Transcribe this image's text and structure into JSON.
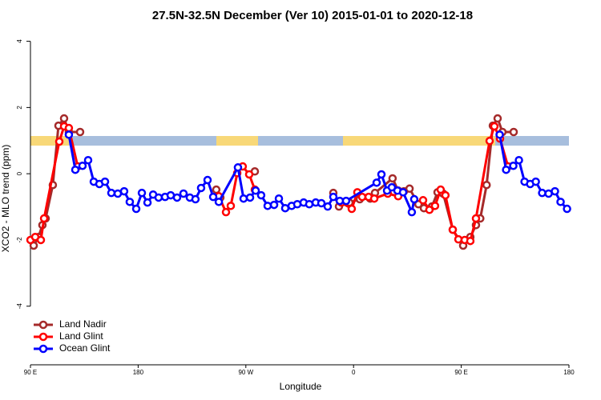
{
  "chart_data": {
    "type": "line",
    "title": "27.5N-32.5N December (Ver 10)   2015-01-01 to 2020-12-18",
    "x_label": "Longitude",
    "y_label": "XCO2 - MLO trend (ppm)",
    "xlim": [
      90,
      540
    ],
    "ylim": [
      -5.77,
      4.28
    ],
    "xticks": [
      {
        "value": 90,
        "label": "90 E"
      },
      180,
      {
        "value": 270,
        "label": "90 W"
      },
      {
        "value": 360,
        "label": "0"
      },
      {
        "value": 450,
        "label": "90 E"
      },
      {
        "value": 540,
        "label": "180"
      }
    ],
    "yticks": [
      -4,
      -2,
      0,
      2,
      4
    ],
    "legend": "bottom-left",
    "series": [
      {
        "name": "Land Nadir",
        "color": "#a52a2a",
        "x": [
          92.7,
          96.7,
          100,
          102.7,
          108.7,
          113.4,
          118.1,
          122.1,
          131.5,
          null,
          245.3,
          248.7,
          null,
          277.5,
          null,
          343.1,
          347.8,
          356.5,
          365.2,
          373.9,
          377.9,
          392.6,
          397.3,
          402.1,
          406.8,
          414.2,
          418.8,
          425.5,
          430.2,
          434.9,
          442.9,
          451.6,
          457.6,
          462.3,
          465.9,
          471.2,
          476.4,
          480.4,
          484.4,
          493.8
        ],
        "values": [
          -2.17,
          -1.91,
          -1.55,
          -1.35,
          -0.34,
          1.45,
          1.67,
          1.26,
          1.26,
          null,
          -0.48,
          -0.72,
          null,
          0.07,
          null,
          -0.58,
          -0.99,
          -0.87,
          -0.77,
          -0.75,
          -0.58,
          -0.14,
          -0.51,
          -0.53,
          -0.45,
          -0.92,
          -1.04,
          -0.99,
          -0.56,
          -0.6,
          -1.69,
          -2.17,
          -1.91,
          -1.55,
          -1.35,
          -0.34,
          1.45,
          1.67,
          1.26,
          1.26
        ]
      },
      {
        "name": "Land Glint",
        "color": "#ff0000",
        "x": [
          90,
          94,
          98.7,
          101.4,
          114.1,
          118.1,
          122.1,
          129.5,
          null,
          247.4,
          253.4,
          257.4,
          262.8,
          267.4,
          272.8,
          277.5,
          null,
          349.8,
          358.5,
          363.2,
          367.2,
          372.6,
          377.3,
          388.6,
          397.3,
          null,
          418.1,
          423.4,
          428.1,
          432.8,
          436.8,
          442.9,
          447.6,
          452.9,
          457.6,
          462.3,
          473.7,
          477.7,
          482.4,
          489.1
        ],
        "values": [
          -2.0,
          -1.91,
          -2.0,
          -1.35,
          0.97,
          1.43,
          1.38,
          0.22,
          null,
          -0.68,
          -1.16,
          -0.97,
          0.02,
          0.22,
          -0.02,
          -0.48,
          null,
          -0.87,
          -1.06,
          -0.56,
          -0.7,
          -0.7,
          -0.75,
          -0.6,
          -0.68,
          null,
          -0.8,
          -1.09,
          -0.97,
          -0.48,
          -0.65,
          -1.69,
          -1.98,
          -2.0,
          -2.03,
          -1.35,
          0.99,
          1.43,
          1.06,
          0.22
        ]
      },
      {
        "name": "Ocean Glint",
        "color": "#0000ff",
        "x": [
          122.1,
          127.5,
          133.5,
          138.2,
          142.9,
          147.6,
          152.3,
          157.6,
          163.0,
          168.3,
          173.0,
          178.4,
          183.1,
          187.8,
          192.5,
          197.1,
          202.5,
          207.2,
          212.5,
          217.9,
          223.2,
          227.9,
          232.6,
          238.0,
          242.7,
          247.4,
          263.4,
          268.1,
          273.5,
          278.2,
          282.8,
          288.2,
          293.6,
          297.6,
          302.9,
          308.3,
          313.0,
          318.3,
          323.0,
          328.4,
          333.1,
          338.4,
          343.1,
          348.5,
          353.8,
          379.3,
          383.3,
          388.0,
          392.0,
          396.7,
          401.4,
          408.7,
          410.7,
          null,
          482.1,
          487.5,
          493.5,
          498.2,
          502.9,
          507.6,
          512.3,
          517.6,
          523.0,
          528.3,
          533.0,
          538.4
        ],
        "values": [
          1.18,
          0.12,
          0.24,
          0.41,
          -0.24,
          -0.31,
          -0.24,
          -0.58,
          -0.6,
          -0.53,
          -0.85,
          -1.06,
          -0.58,
          -0.87,
          -0.63,
          -0.72,
          -0.7,
          -0.65,
          -0.72,
          -0.6,
          -0.72,
          -0.77,
          -0.43,
          -0.19,
          -0.7,
          -0.85,
          0.19,
          -0.75,
          -0.72,
          -0.51,
          -0.65,
          -0.97,
          -0.94,
          -0.75,
          -1.04,
          -0.97,
          -0.92,
          -0.87,
          -0.92,
          -0.87,
          -0.89,
          -0.99,
          -0.7,
          -0.82,
          -0.82,
          -0.27,
          -0.02,
          -0.51,
          -0.41,
          -0.51,
          -0.56,
          -1.16,
          -0.77,
          null,
          1.18,
          0.12,
          0.24,
          0.41,
          -0.24,
          -0.31,
          -0.24,
          -0.58,
          -0.6,
          -0.53,
          -0.85,
          -1.06
        ]
      }
    ]
  }
}
